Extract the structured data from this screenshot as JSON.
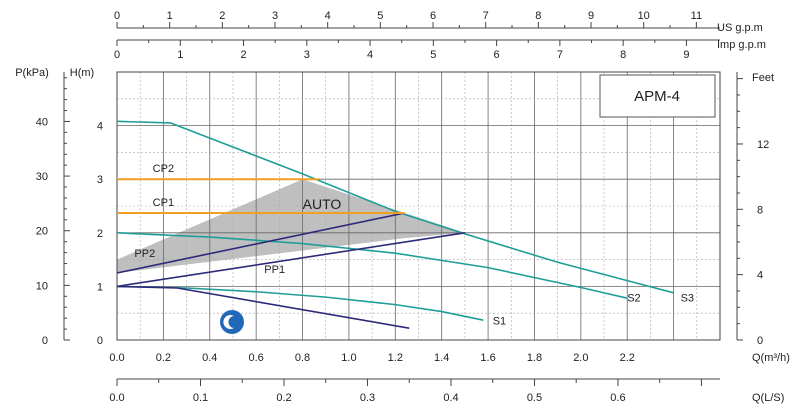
{
  "chart_data": {
    "type": "line",
    "model": "APM-4",
    "auto_label": "AUTO",
    "colors": {
      "curve": "#1f9e98",
      "pp": "#2d2a7a",
      "cp": "#f0a020",
      "auto_region": "#b4b4b4",
      "night_icon": "#2268b8"
    },
    "axes": {
      "x_m3h": {
        "label": "Q(m³/h)",
        "range": [
          0,
          2.6
        ],
        "ticks": [
          "0.0",
          "0.2",
          "0.4",
          "0.6",
          "0.8",
          "1.0",
          "1.2",
          "1.4",
          "1.6",
          "1.8",
          "2.0",
          "2.2"
        ],
        "tick_values": [
          0,
          0.2,
          0.4,
          0.6,
          0.8,
          1.0,
          1.2,
          1.4,
          1.6,
          1.8,
          2.0,
          2.2
        ]
      },
      "x_ls": {
        "label": "Q(L/S)",
        "ticks": [
          "0.0",
          "0.1",
          "0.2",
          "0.3",
          "0.4",
          "0.5",
          "0.6"
        ],
        "tick_values": [
          0,
          0.1,
          0.2,
          0.3,
          0.4,
          0.5,
          0.6
        ]
      },
      "x_us_gpm": {
        "label": "US  g.p.m",
        "ticks": [
          "0",
          "1",
          "2",
          "3",
          "4",
          "5",
          "6",
          "7",
          "8",
          "9",
          "10",
          "11"
        ],
        "tick_values": [
          0,
          1,
          2,
          3,
          4,
          5,
          6,
          7,
          8,
          9,
          10,
          11
        ]
      },
      "x_imp_gpm": {
        "label": "Imp  g.p.m",
        "ticks": [
          "0",
          "1",
          "2",
          "3",
          "4",
          "5",
          "6",
          "7",
          "8",
          "9"
        ],
        "tick_values": [
          0,
          1,
          2,
          3,
          4,
          5,
          6,
          7,
          8,
          9
        ]
      },
      "y_m": {
        "label": "H(m)",
        "range": [
          0,
          5
        ],
        "ticks": [
          "0",
          "1",
          "2",
          "3",
          "4"
        ],
        "tick_values": [
          0,
          1,
          2,
          3,
          4
        ]
      },
      "y_kpa": {
        "label": "P(kPa)",
        "ticks": [
          "0",
          "10",
          "20",
          "30",
          "40"
        ],
        "tick_values": [
          0,
          10,
          20,
          30,
          40
        ]
      },
      "y_feet": {
        "label": "Feet",
        "ticks": [
          "0",
          "4",
          "8",
          "12"
        ],
        "tick_values": [
          0,
          4,
          8,
          12
        ]
      }
    },
    "series": [
      {
        "name": "S3",
        "kind": "curve",
        "x": [
          0.0,
          0.23,
          0.8,
          1.2,
          1.5,
          1.9,
          2.4
        ],
        "y": [
          4.08,
          4.05,
          3.1,
          2.4,
          1.98,
          1.45,
          0.88
        ]
      },
      {
        "name": "S2",
        "kind": "curve",
        "x": [
          0.0,
          0.4,
          0.8,
          1.2,
          1.6,
          2.0,
          2.2
        ],
        "y": [
          2.0,
          1.92,
          1.8,
          1.62,
          1.35,
          0.98,
          0.78
        ]
      },
      {
        "name": "S1",
        "kind": "curve",
        "x": [
          0.0,
          0.3,
          0.6,
          0.9,
          1.2,
          1.4,
          1.58
        ],
        "y": [
          1.0,
          0.97,
          0.9,
          0.8,
          0.66,
          0.53,
          0.37
        ]
      },
      {
        "name": "PP2",
        "kind": "pp",
        "x": [
          0.0,
          1.24
        ],
        "y": [
          1.25,
          2.37
        ]
      },
      {
        "name": "PP1",
        "kind": "pp",
        "x": [
          0.0,
          1.5
        ],
        "y": [
          1.0,
          2.0
        ]
      },
      {
        "name": "",
        "kind": "night",
        "x": [
          0.0,
          0.26,
          1.26
        ],
        "y": [
          1.0,
          0.97,
          0.22
        ]
      },
      {
        "name": "CP2",
        "kind": "cp",
        "x": [
          0.0,
          0.87
        ],
        "y": [
          3.0,
          3.0
        ]
      },
      {
        "name": "CP1",
        "kind": "cp",
        "x": [
          0.0,
          1.24
        ],
        "y": [
          2.37,
          2.37
        ]
      }
    ],
    "auto_region": {
      "x": [
        0.0,
        0.8,
        1.5,
        1.24,
        0.0
      ],
      "y": [
        1.5,
        3.0,
        2.0,
        1.9,
        1.25
      ]
    },
    "grid": true
  }
}
